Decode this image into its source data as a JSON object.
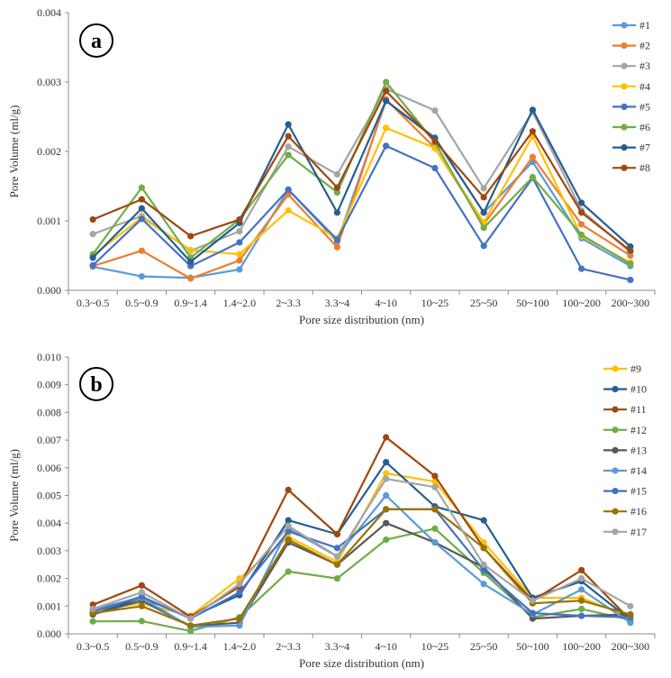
{
  "chart_data": [
    {
      "type": "line",
      "panel_label": "a",
      "title": "",
      "xlabel": "Pore size distribution (nm)",
      "ylabel": "Pore Volume (ml/g)",
      "ylim": [
        0,
        0.004
      ],
      "yticks": [
        "0.000",
        "0.001",
        "0.002",
        "0.003",
        "0.004"
      ],
      "grid": false,
      "legend_position": "right",
      "categories": [
        "0.3~0.5",
        "0.5~0.9",
        "0.9~1.4",
        "1.4~2.0",
        "2~3.3",
        "3.3~4",
        "4~10",
        "10~25",
        "25~50",
        "50~100",
        "100~200",
        "200~300"
      ],
      "series": [
        {
          "name": "#1",
          "color": "#5b9bd5",
          "values": [
            0.00034,
            0.0002,
            0.00018,
            0.0003,
            0.00145,
            0.0007,
            0.00273,
            0.0022,
            0.00112,
            0.00185,
            0.00075,
            0.00035
          ]
        },
        {
          "name": "#2",
          "color": "#ed7d31",
          "values": [
            0.00035,
            0.00057,
            0.00017,
            0.00043,
            0.00138,
            0.00062,
            0.00275,
            0.00205,
            0.00095,
            0.00192,
            0.00095,
            0.0005
          ]
        },
        {
          "name": "#3",
          "color": "#a5a5a5",
          "values": [
            0.00081,
            0.00107,
            0.00057,
            0.00085,
            0.00207,
            0.00167,
            0.0029,
            0.00259,
            0.00147,
            0.00257,
            0.00115,
            0.00055
          ]
        },
        {
          "name": "#4",
          "color": "#ffc000",
          "values": [
            0.0005,
            0.00105,
            0.00058,
            0.00052,
            0.00115,
            0.00075,
            0.00234,
            0.00205,
            0.00098,
            0.00222,
            0.00078,
            0.0004
          ]
        },
        {
          "name": "#5",
          "color": "#4472c4",
          "values": [
            0.00036,
            0.00103,
            0.00035,
            0.00069,
            0.00145,
            0.00073,
            0.00208,
            0.00176,
            0.00064,
            0.00162,
            0.00031,
            0.00015
          ]
        },
        {
          "name": "#6",
          "color": "#70ad47",
          "values": [
            0.00052,
            0.00148,
            0.00047,
            0.00102,
            0.00195,
            0.00141,
            0.003,
            0.00213,
            0.0009,
            0.00163,
            0.0008,
            0.00038
          ]
        },
        {
          "name": "#7",
          "color": "#255e91",
          "values": [
            0.00047,
            0.00118,
            0.00041,
            0.00097,
            0.00239,
            0.00112,
            0.00273,
            0.00219,
            0.00112,
            0.0026,
            0.00126,
            0.00063
          ]
        },
        {
          "name": "#8",
          "color": "#9e480e",
          "values": [
            0.00102,
            0.00131,
            0.00078,
            0.00102,
            0.00222,
            0.00148,
            0.00287,
            0.00215,
            0.00134,
            0.00229,
            0.00112,
            0.00057
          ]
        }
      ]
    },
    {
      "type": "line",
      "panel_label": "b",
      "title": "",
      "xlabel": "Pore size distribution (nm)",
      "ylabel": "Pore Volume (ml/g)",
      "ylim": [
        0,
        0.01
      ],
      "yticks": [
        "0.000",
        "0.001",
        "0.002",
        "0.003",
        "0.004",
        "0.005",
        "0.006",
        "0.007",
        "0.008",
        "0.009",
        "0.010"
      ],
      "grid": false,
      "legend_position": "right",
      "categories": [
        "0.3~0.5",
        "0.5~0.9",
        "0.9~1.4",
        "1.4~2.0",
        "2~3.3",
        "3.3~4",
        "4~10",
        "10~25",
        "25~50",
        "50~100",
        "100~200",
        "200~300"
      ],
      "series": [
        {
          "name": "#9",
          "color": "#ffc000",
          "values": [
            0.00085,
            0.0011,
            0.00065,
            0.002,
            0.0035,
            0.0026,
            0.0058,
            0.0055,
            0.0033,
            0.0013,
            0.0013,
            0.0006
          ]
        },
        {
          "name": "#10",
          "color": "#255e91",
          "values": [
            0.0007,
            0.0013,
            0.0006,
            0.0014,
            0.0041,
            0.0036,
            0.0062,
            0.0046,
            0.0041,
            0.0013,
            0.0019,
            0.0005
          ]
        },
        {
          "name": "#11",
          "color": "#9e480e",
          "values": [
            0.00105,
            0.00175,
            0.00062,
            0.0017,
            0.0052,
            0.0036,
            0.0071,
            0.0057,
            0.0031,
            0.0012,
            0.0023,
            0.0005
          ]
        },
        {
          "name": "#12",
          "color": "#70ad47",
          "values": [
            0.00045,
            0.00046,
            0.0001,
            0.0006,
            0.00225,
            0.002,
            0.0034,
            0.0038,
            0.0022,
            0.0006,
            0.0009,
            0.0005
          ]
        },
        {
          "name": "#13",
          "color": "#595959",
          "values": [
            0.0007,
            0.0012,
            0.00028,
            0.0004,
            0.0033,
            0.0025,
            0.004,
            0.0033,
            0.0024,
            0.00055,
            0.00065,
            0.0007
          ]
        },
        {
          "name": "#14",
          "color": "#5b9bd5",
          "values": [
            0.0009,
            0.0013,
            0.00025,
            0.0003,
            0.0038,
            0.0028,
            0.005,
            0.0033,
            0.0018,
            0.0007,
            0.0016,
            0.0004
          ]
        },
        {
          "name": "#15",
          "color": "#4472c4",
          "values": [
            0.0008,
            0.00135,
            0.00055,
            0.0015,
            0.0037,
            0.0031,
            0.0045,
            0.0045,
            0.0023,
            0.00075,
            0.00065,
            0.0006
          ]
        },
        {
          "name": "#16",
          "color": "#997300",
          "values": [
            0.00075,
            0.001,
            0.0003,
            0.00055,
            0.0034,
            0.0025,
            0.0045,
            0.0045,
            0.0031,
            0.0011,
            0.0012,
            0.0007
          ]
        },
        {
          "name": "#17",
          "color": "#a5a5a5",
          "values": [
            0.0009,
            0.0015,
            0.00055,
            0.0018,
            0.0039,
            0.0028,
            0.0056,
            0.0053,
            0.0025,
            0.0012,
            0.002,
            0.001
          ]
        }
      ]
    }
  ]
}
